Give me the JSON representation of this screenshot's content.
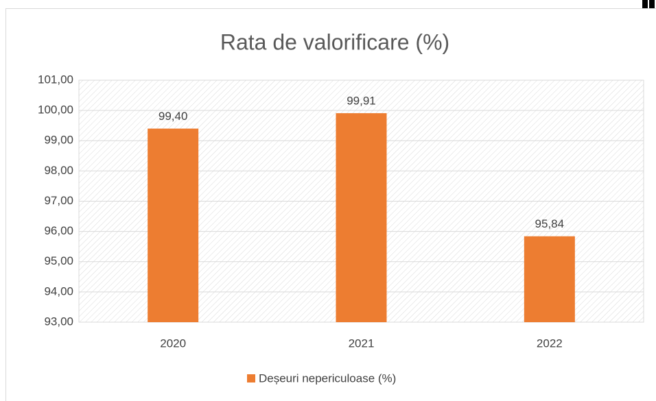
{
  "chart_data": {
    "type": "bar",
    "title": "Rata de valorificare (%)",
    "categories": [
      "2020",
      "2021",
      "2022"
    ],
    "series": [
      {
        "name": "Deșeuri nepericuloase (%)",
        "color": "#ed7d31",
        "values": [
          99.4,
          99.91,
          95.84
        ],
        "value_labels": [
          "99,40",
          "99,91",
          "95,84"
        ]
      }
    ],
    "ylim": [
      93,
      101
    ],
    "yticks": [
      {
        "value": 93,
        "label": "93,00"
      },
      {
        "value": 94,
        "label": "94,00"
      },
      {
        "value": 95,
        "label": "95,00"
      },
      {
        "value": 96,
        "label": "96,00"
      },
      {
        "value": 97,
        "label": "97,00"
      },
      {
        "value": 98,
        "label": "98,00"
      },
      {
        "value": 99,
        "label": "99,00"
      },
      {
        "value": 100,
        "label": "100,00"
      },
      {
        "value": 101,
        "label": "101,00"
      }
    ],
    "grid": true,
    "legend": "bottom"
  }
}
